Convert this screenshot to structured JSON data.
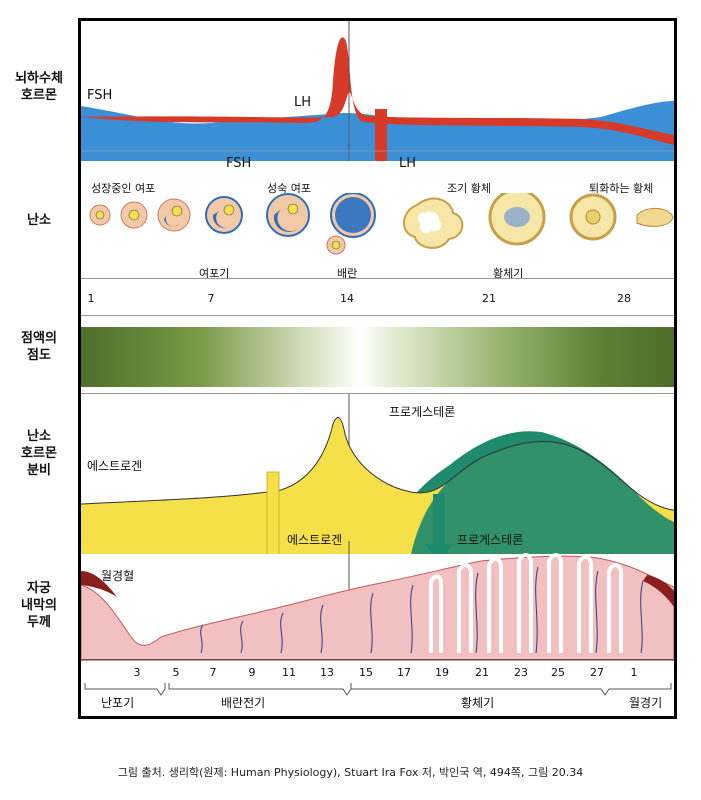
{
  "row_labels": {
    "pituitary": "뇌하수체\n호르몬",
    "ovary": "난소",
    "mucus": "점액의\n점도",
    "ovarian_hormones": "난소\n호르몬\n분비",
    "endometrium": "자궁\n내막의\n두께"
  },
  "pituitary": {
    "fsh_curve_label": "FSH",
    "lh_curve_label": "LH",
    "fsh_arrow_label": "FSH",
    "lh_arrow_label": "LH",
    "fsh_color": "#3b8fd6",
    "lh_color": "#d83a2a"
  },
  "ovary": {
    "growing_follicle": "성장중인  여포",
    "mature_follicle": "성숙  여포",
    "early_corpus": "조기  황체",
    "regressing_corpus": "퇴화하는  황체",
    "follicular_phase": "여포기",
    "ovulation": "배란",
    "luteal_phase": "황체기",
    "days": [
      "1",
      "7",
      "14",
      "21",
      "28"
    ]
  },
  "hormones": {
    "estrogen_label": "에스트로겐",
    "progesterone_label": "프로게스테론",
    "estrogen_arrow_label": "에스트로겐",
    "progesterone_arrow_label": "프로게스테론",
    "estrogen_color": "#f6e04a",
    "progesterone_color": "#1f8a6e"
  },
  "endometrium": {
    "menstrual_blood": "월경혈",
    "days": [
      "3",
      "5",
      "7",
      "9",
      "11",
      "13",
      "15",
      "17",
      "19",
      "21",
      "23",
      "25",
      "27",
      "1"
    ],
    "phases": {
      "menstrual": "난포기",
      "preovulatory": "배란전기",
      "luteal": "황체기",
      "menses": "월경기"
    }
  },
  "mucus_color": "#4e6e2a",
  "footer": "그림 출처. 생리학(원제: Human Physiology), Stuart Ira Fox 저, 박인국 역, 494쪽, 그림 20.34"
}
